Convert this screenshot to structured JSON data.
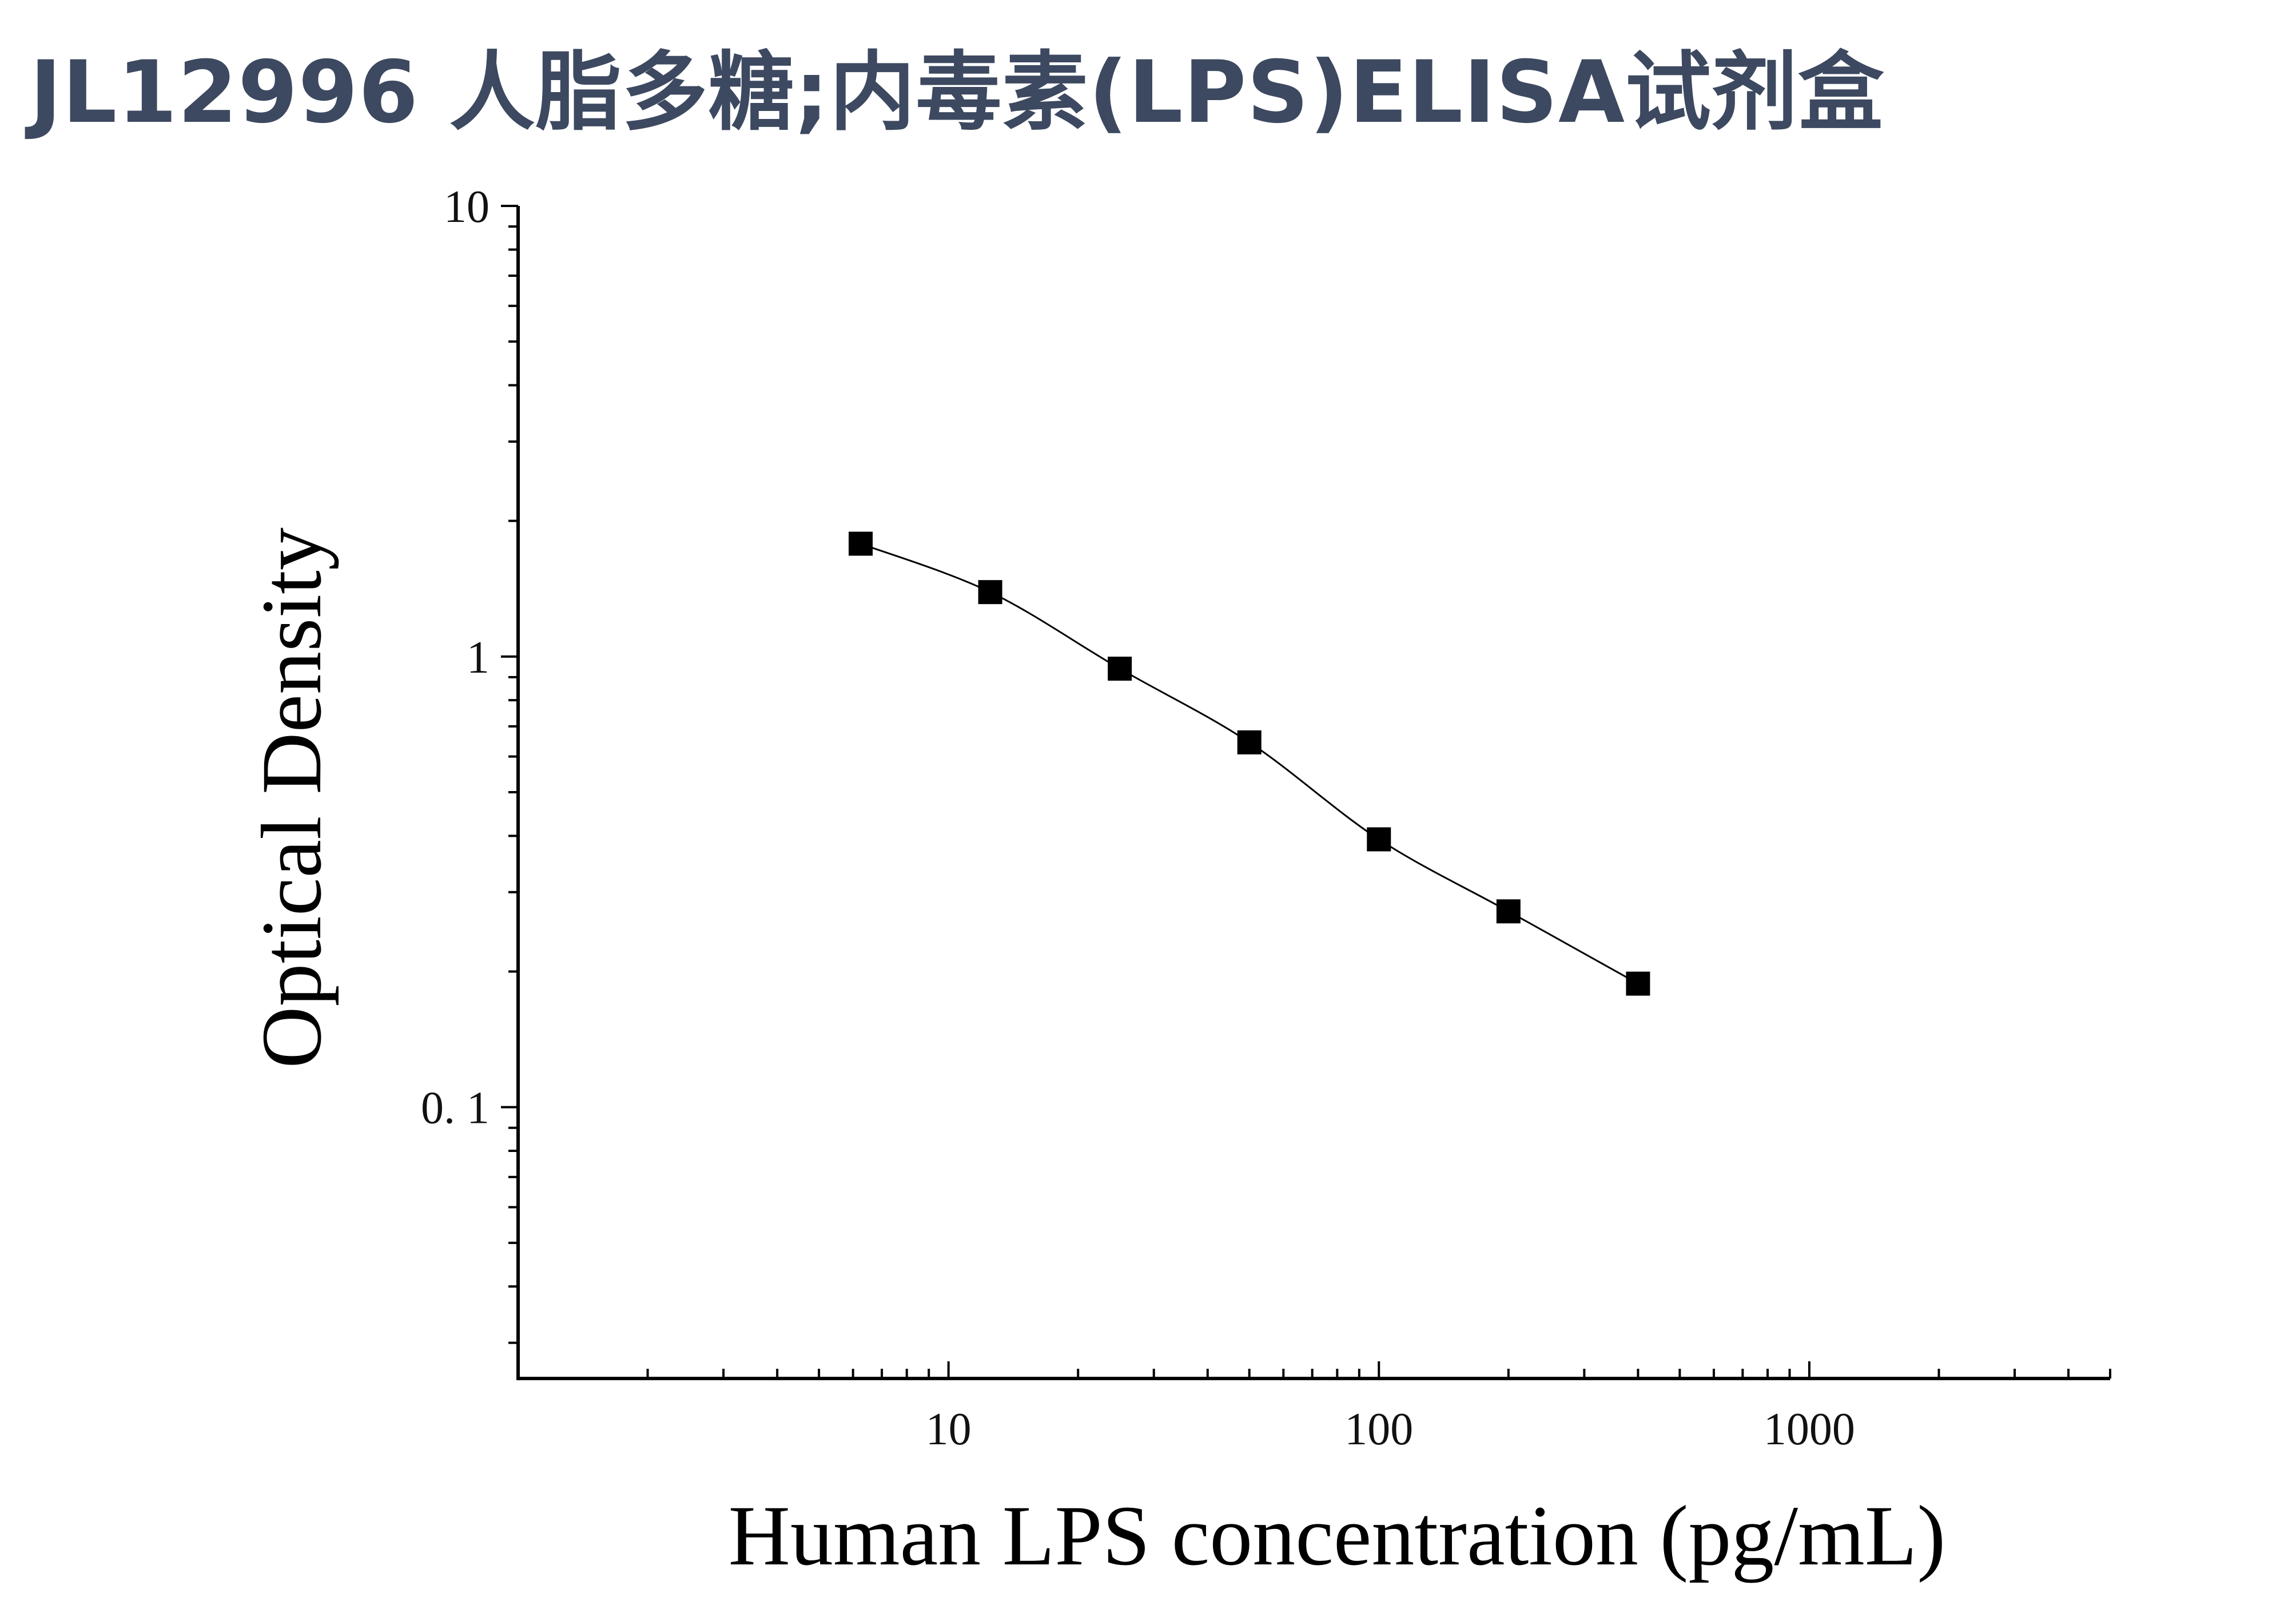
{
  "title": "JL12996 人脂多糖;内毒素(LPS)ELISA试剂盒",
  "chart_data": {
    "type": "scatter",
    "xlabel": "Human LPS concentration (pg/mL)",
    "ylabel": "Optical Density",
    "x_scale": "log",
    "y_scale": "log",
    "xlim": [
      1,
      5000
    ],
    "ylim": [
      0.025,
      10
    ],
    "x_ticks": [
      "10",
      "100",
      "1000"
    ],
    "y_ticks": [
      "10",
      "1",
      "0. 1"
    ],
    "grid": false,
    "marker": "square",
    "fit_line": "smooth curve through points",
    "series": [
      {
        "x": [
          6.25,
          12.5,
          25,
          50,
          100,
          200,
          400
        ],
        "y": [
          1.78,
          1.39,
          0.94,
          0.645,
          0.393,
          0.272,
          0.188
        ]
      }
    ]
  }
}
